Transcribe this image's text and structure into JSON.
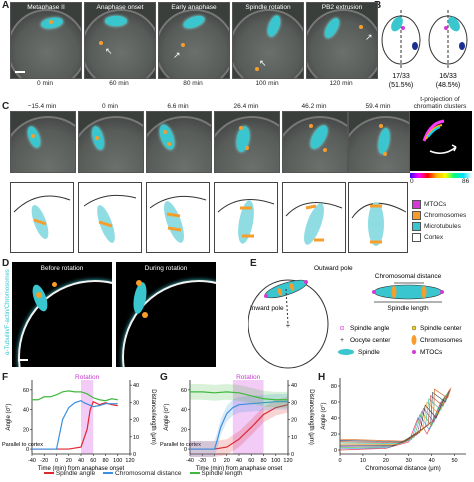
{
  "panels": {
    "A": "A",
    "B": "B",
    "C": "C",
    "D": "D",
    "E": "E",
    "F": "F",
    "G": "G",
    "H": "H"
  },
  "panelA": {
    "titles": [
      "Metaphase II",
      "Anaphase onset",
      "Early anaphase",
      "Spindle rotation",
      "PB2 extrusion"
    ],
    "times": [
      "0 min",
      "60 min",
      "80 min",
      "100 min",
      "120 min"
    ]
  },
  "panelB": {
    "left_ratio": "17/33",
    "left_pct": "(51.5%)",
    "right_ratio": "16/33",
    "right_pct": "(48.5%)"
  },
  "panelC": {
    "times": [
      "−15.4 min",
      "0 min",
      "6.6 min",
      "26.4 min",
      "46.2 min",
      "59.4 min"
    ],
    "projection_title": "t-projection of chromatin clusters",
    "colorbar_min": "0",
    "colorbar_max": "86",
    "legend": [
      "MTOCs",
      "Chromosomes",
      "Microtubules",
      "Cortex"
    ]
  },
  "panelD": {
    "vertical_label": "α-Tubulin/F-actin/Chromosomes",
    "before": "Before rotation",
    "during": "During rotation"
  },
  "panelE": {
    "outward_pole": "Outward pole",
    "inward_pole": "Inward pole",
    "chromosomal_distance": "Chromosomal distance",
    "spindle_length": "Spindle length",
    "legend": [
      "Spindle angle",
      "Oocyte center",
      "Spindle",
      "Spindle center",
      "Chromosomes",
      "MTOCs"
    ]
  },
  "colors": {
    "cyan": "#39c6cf",
    "orange": "#f79d2c",
    "magenta": "#d63ad6",
    "red": "#e0262f",
    "blue": "#3b8fe0",
    "green": "#3fb83f",
    "rotation": "#e9a8f0"
  },
  "chart_data": [
    {
      "type": "line",
      "panel": "F",
      "title": "",
      "xlabel": "Time (min) from anaphase onset",
      "ylabel": "Angle (σ°)",
      "ylabel_right": "Distance/length (μm)",
      "annotation": "Rotation",
      "parallel_label": "Parallel to cortex",
      "x_ticks": [
        -40,
        -20,
        0,
        20,
        40,
        60,
        80,
        100,
        120
      ],
      "y_ticks": [
        0,
        20,
        40,
        60
      ],
      "y2_ticks": [
        0,
        10,
        20,
        30,
        40
      ],
      "xlim": [
        -40,
        120
      ],
      "ylim": [
        -5,
        70
      ],
      "y2lim": [
        0,
        43
      ],
      "rotation_band": [
        40,
        60
      ],
      "series": [
        {
          "name": "Spindle angle",
          "color": "#e0262f",
          "x": [
            -40,
            -20,
            0,
            20,
            40,
            50,
            55,
            60,
            70,
            80,
            90,
            100
          ],
          "y": [
            0,
            0,
            0,
            0,
            2,
            20,
            40,
            48,
            45,
            47,
            45,
            44
          ]
        },
        {
          "name": "Chromosomal distance",
          "color": "#3b8fe0",
          "x": [
            -40,
            -20,
            0,
            5,
            10,
            20,
            30,
            40,
            45,
            60,
            70,
            80,
            90,
            100
          ],
          "y": [
            0,
            0,
            0,
            15,
            30,
            42,
            47,
            49,
            47,
            43,
            44,
            46,
            46,
            46
          ]
        },
        {
          "name": "Spindle length",
          "color": "#3fb83f",
          "x": [
            -40,
            -30,
            -20,
            -10,
            0,
            10,
            20,
            30,
            40,
            50,
            60,
            70,
            80,
            90,
            100
          ],
          "y": [
            50,
            50,
            53,
            53,
            55,
            58,
            59,
            58,
            58,
            56,
            52,
            50,
            49,
            51,
            50
          ]
        }
      ]
    },
    {
      "type": "line",
      "panel": "G",
      "title": "",
      "xlabel": "Time (min) from anaphase onset",
      "ylabel": "Angle (σ°)",
      "ylabel_right": "Distance/length (μm)",
      "annotation": "Rotation",
      "parallel_label": "Parallel to cortex",
      "x_ticks": [
        -40,
        -20,
        0,
        20,
        40,
        60,
        80,
        100,
        120
      ],
      "y_ticks": [
        0,
        20,
        40,
        60
      ],
      "y2_ticks": [
        0,
        10,
        20,
        30,
        40
      ],
      "xlim": [
        -40,
        120
      ],
      "ylim": [
        -5,
        70
      ],
      "y2lim": [
        0,
        43
      ],
      "rotation_band": [
        30,
        80
      ],
      "series": [
        {
          "name": "Spindle angle",
          "color": "#e0262f",
          "x": [
            -40,
            -20,
            0,
            20,
            40,
            60,
            80,
            100,
            120
          ],
          "y": [
            0,
            0,
            0,
            2,
            10,
            22,
            35,
            42,
            45
          ]
        },
        {
          "name": "Chromosomal distance",
          "color": "#3b8fe0",
          "x": [
            -40,
            -20,
            0,
            5,
            10,
            20,
            30,
            40,
            60,
            80,
            100,
            120
          ],
          "y": [
            0,
            0,
            0,
            10,
            22,
            36,
            42,
            45,
            46,
            47,
            48,
            48
          ]
        },
        {
          "name": "Spindle length",
          "color": "#3fb83f",
          "x": [
            -40,
            -20,
            0,
            20,
            40,
            60,
            80,
            100,
            120
          ],
          "y": [
            58,
            58,
            57,
            58,
            57,
            54,
            51,
            50,
            50
          ]
        }
      ]
    },
    {
      "type": "line",
      "panel": "H",
      "title": "",
      "xlabel": "Chromosomal distance (μm)",
      "ylabel": "Angle (σ°)",
      "x_ticks": [
        0,
        10,
        20,
        30,
        40,
        50
      ],
      "y_ticks": [
        0,
        20,
        40,
        60,
        80
      ],
      "xlim": [
        0,
        55
      ],
      "ylim": [
        -5,
        90
      ]
    }
  ],
  "legendFG": [
    "Spindle angle",
    "Chromosomal distance",
    "Spindle length"
  ]
}
